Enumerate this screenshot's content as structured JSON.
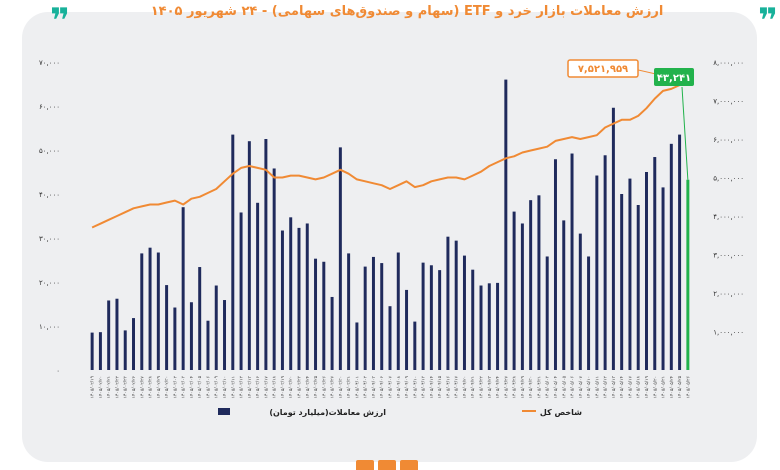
{
  "title": "ارزش معاملات بازار خرد و ETF (سهام و صندوق‌های سهامی) - ۲۴ شهریور ۱۴۰۵",
  "quote_mark": "❞",
  "chart_data": {
    "type": "bar+line",
    "left_axis": {
      "ticks": [
        0,
        10000,
        20000,
        30000,
        40000,
        50000,
        60000,
        70000
      ],
      "tick_labels": [
        "۰",
        "۱۰,۰۰۰",
        "۲۰,۰۰۰",
        "۳۰,۰۰۰",
        "۴۰,۰۰۰",
        "۵۰,۰۰۰",
        "۶۰,۰۰۰",
        "۷۰,۰۰۰"
      ],
      "ylim": [
        0,
        70000
      ]
    },
    "right_axis": {
      "ticks": [
        1000000,
        2000000,
        3000000,
        4000000,
        5000000,
        6000000,
        7000000,
        8000000
      ],
      "tick_labels": [
        "۱,۰۰۰,۰۰۰",
        "۲,۰۰۰,۰۰۰",
        "۳,۰۰۰,۰۰۰",
        "۴,۰۰۰,۰۰۰",
        "۵,۰۰۰,۰۰۰",
        "۶,۰۰۰,۰۰۰",
        "۷,۰۰۰,۰۰۰",
        "۸,۰۰۰,۰۰۰"
      ],
      "ylim": [
        0,
        8000000
      ]
    },
    "series": [
      {
        "name": "ارزش معاملات(میلیارد تومان)",
        "type": "bar",
        "axis": "left",
        "color": "#1f2a5c",
        "highlight_color": "#22b24c",
        "values": [
          8500,
          8600,
          15800,
          16200,
          9000,
          11800,
          26500,
          27800,
          26700,
          19300,
          14200,
          37000,
          15400,
          23400,
          11200,
          19200,
          15900,
          53500,
          35800,
          52000,
          38000,
          52500,
          45800,
          31700,
          34700,
          32300,
          33300,
          25300,
          24600,
          16600,
          50600,
          26500,
          10800,
          23500,
          25700,
          24300,
          14500,
          26700,
          18200,
          11000,
          24400,
          23800,
          22700,
          30300,
          29400,
          26000,
          22800,
          19200,
          19700,
          19800,
          66000,
          36000,
          33300,
          38600,
          39700,
          25800,
          47900,
          34000,
          49200,
          31000,
          25800,
          44200,
          48800,
          59600,
          40000,
          43500,
          37500,
          45000,
          48400,
          41500,
          51400,
          53500,
          43241
        ]
      },
      {
        "name": "شاخص کل",
        "type": "line",
        "axis": "right",
        "color": "#f08a34",
        "values": [
          3700000,
          3800000,
          3900000,
          4000000,
          4100000,
          4200000,
          4250000,
          4300000,
          4300000,
          4350000,
          4400000,
          4300000,
          4450000,
          4500000,
          4600000,
          4700000,
          4900000,
          5100000,
          5250000,
          5300000,
          5250000,
          5200000,
          5000000,
          5000000,
          5050000,
          5050000,
          5000000,
          4950000,
          5000000,
          5100000,
          5200000,
          5100000,
          4950000,
          4900000,
          4850000,
          4800000,
          4700000,
          4800000,
          4900000,
          4750000,
          4800000,
          4900000,
          4950000,
          5000000,
          5000000,
          4950000,
          5050000,
          5150000,
          5300000,
          5400000,
          5500000,
          5550000,
          5650000,
          5700000,
          5750000,
          5800000,
          5950000,
          6000000,
          6050000,
          6000000,
          6050000,
          6100000,
          6300000,
          6400000,
          6500000,
          6500000,
          6600000,
          6800000,
          7050000,
          7250000,
          7300000,
          7400000,
          7521959
        ]
      }
    ],
    "x_tick_labels": [
      "۱۴۰۵/۰۲/۱۹",
      "۱۴۰۵/۰۲/۲۰",
      "۱۴۰۵/۰۲/۲۱",
      "۱۴۰۵/۰۲/۲۲",
      "۱۴۰۵/۰۲/۲۳",
      "۱۴۰۵/۰۲/۲۶",
      "۱۴۰۵/۰۲/۲۷",
      "۱۴۰۵/۰۲/۲۸",
      "۱۴۰۵/۰۲/۲۹",
      "۱۴۰۵/۰۲/۳۰",
      "۱۴۰۵/۰۳/۰۲",
      "۱۴۰۵/۰۳/۰۳",
      "۱۴۰۵/۰۳/۰۴",
      "۱۴۰۵/۰۳/۰۵",
      "۱۴۰۵/۰۳/۰۶",
      "۱۴۰۵/۰۳/۰۹",
      "۱۴۰۵/۰۳/۱۰",
      "۱۴۰۵/۰۳/۱۱",
      "۱۴۰۵/۰۳/۱۲",
      "۱۴۰۵/۰۳/۱۳",
      "۱۴۰۵/۰۳/۱۶",
      "۱۴۰۵/۰۳/۱۷",
      "۱۴۰۵/۰۳/۱۸",
      "۱۴۰۵/۰۳/۱۹",
      "۱۴۰۵/۰۳/۲۰",
      "۱۴۰۵/۰۳/۲۳",
      "۱۴۰۵/۰۳/۲۴",
      "۱۴۰۵/۰۳/۲۵",
      "۱۴۰۵/۰۳/۲۶",
      "۱۴۰۵/۰۳/۲۷",
      "۱۴۰۵/۰۳/۳۰",
      "۱۴۰۵/۰۳/۳۱",
      "۱۴۰۵/۰۴/۰۱",
      "۱۴۰۵/۰۴/۰۲",
      "۱۴۰۵/۰۴/۰۳",
      "۱۴۰۵/۰۴/۰۶",
      "۱۴۰۵/۰۴/۰۷",
      "۱۴۰۵/۰۴/۰۸",
      "۱۴۰۵/۰۴/۰۹",
      "۱۴۰۵/۰۴/۱۰",
      "۱۴۰۵/۰۴/۱۳",
      "۱۴۰۵/۰۴/۱۴",
      "۱۴۰۵/۰۴/۱۵",
      "۱۴۰۵/۰۴/۱۶",
      "۱۴۰۵/۰۴/۱۷",
      "۱۴۰۵/۰۴/۲۰",
      "۱۴۰۵/۰۴/۲۱",
      "۱۴۰۵/۰۴/۲۲",
      "۱۴۰۵/۰۴/۲۳",
      "۱۴۰۵/۰۴/۲۴",
      "۱۴۰۵/۰۴/۲۷",
      "۱۴۰۵/۰۴/۲۸",
      "۱۴۰۵/۰۴/۲۹",
      "۱۴۰۵/۰۴/۳۰",
      "۱۴۰۵/۰۴/۳۱",
      "۱۴۰۵/۰۵/۰۳",
      "۱۴۰۵/۰۵/۰۴",
      "۱۴۰۵/۰۵/۰۵",
      "۱۴۰۵/۰۵/۰۶",
      "۱۴۰۵/۰۵/۰۷",
      "۱۴۰۵/۰۵/۱۰",
      "۱۴۰۵/۰۵/۱۱",
      "۱۴۰۵/۰۵/۱۲",
      "۱۴۰۵/۰۵/۱۳",
      "۱۴۰۵/۰۵/۱۴",
      "۱۴۰۵/۰۵/۱۷",
      "۱۴۰۵/۰۵/۱۸",
      "۱۴۰۵/۰۵/۱۹",
      "۱۴۰۵/۰۵/۲۰",
      "۱۴۰۵/۰۵/۲۱",
      "۱۴۰۵/۰۵/۲۴",
      "۱۴۰۵/۰۵/۲۵",
      "۱۴۰۵/۰۵/۲۶"
    ],
    "annotations": [
      {
        "series": "شاخص کل",
        "text": "۷,۵۲۱,۹۵۹",
        "color": "#f08a34"
      },
      {
        "series": "ارزش معاملات(میلیارد تومان)",
        "text": "۴۳,۲۴۱",
        "color": "#22b24c"
      }
    ],
    "legend_position": "bottom",
    "grid": false
  }
}
